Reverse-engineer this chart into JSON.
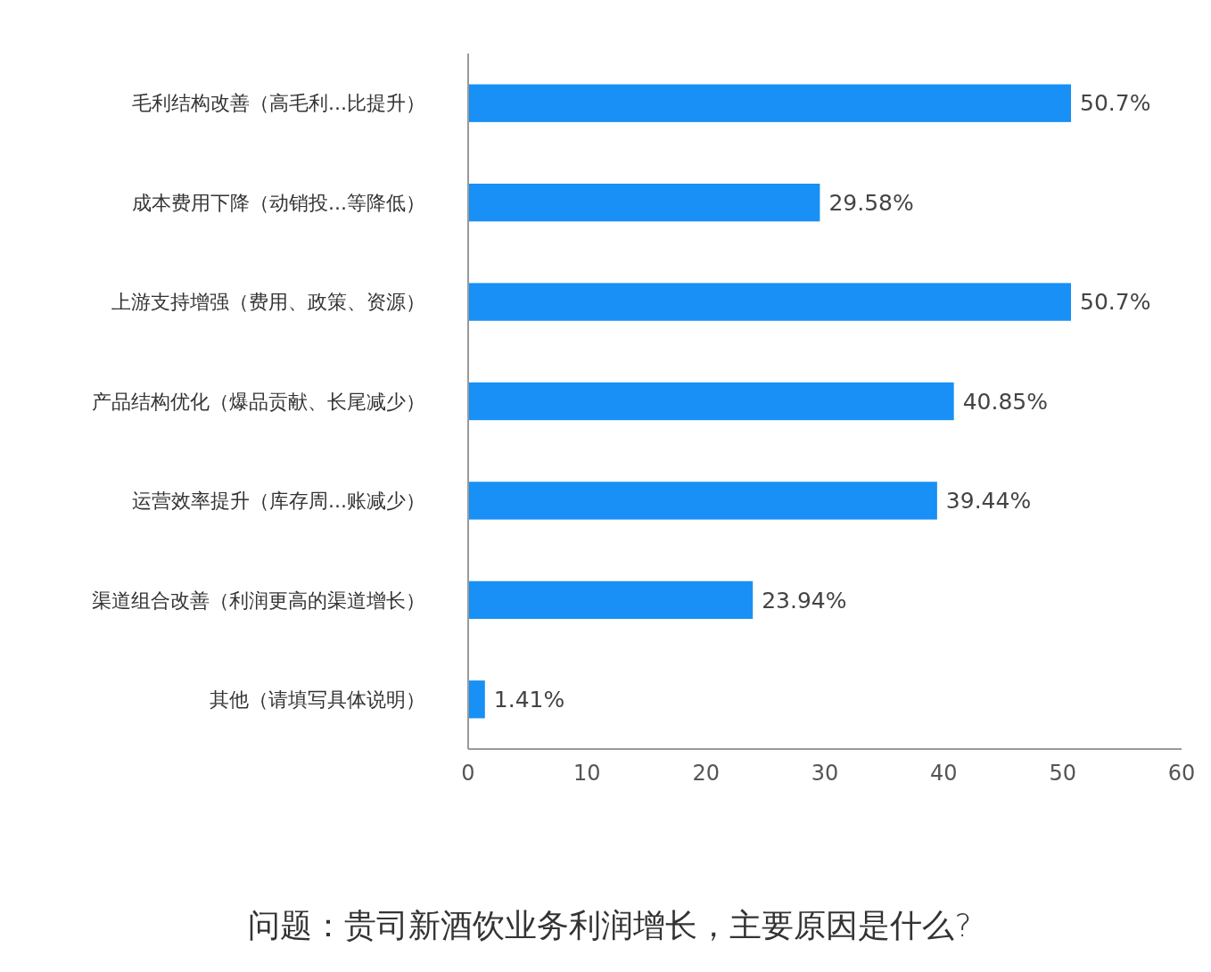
{
  "chart_data": {
    "type": "bar",
    "orientation": "horizontal",
    "title": "问题：贵司新酒饮业务利润增长，主要原因是什么?",
    "categories": [
      "毛利结构改善（高毛利...比提升）",
      "成本费用下降（动销投...等降低）",
      "上游支持增强（费用、政策、资源）",
      "产品结构优化（爆品贡献、长尾减少）",
      "运营效率提升（库存周...账减少）",
      "渠道组合改善（利润更高的渠道增长）",
      "其他（请填写具体说明）"
    ],
    "values": [
      50.7,
      29.58,
      50.7,
      40.85,
      39.44,
      23.94,
      1.41
    ],
    "value_labels": [
      "50.7%",
      "29.58%",
      "50.7%",
      "40.85%",
      "39.44%",
      "23.94%",
      "1.41%"
    ],
    "color": "#1890f5",
    "xlim": [
      0,
      60
    ],
    "xticks": [
      0,
      10,
      20,
      30,
      40,
      50,
      60
    ],
    "grid": false
  }
}
